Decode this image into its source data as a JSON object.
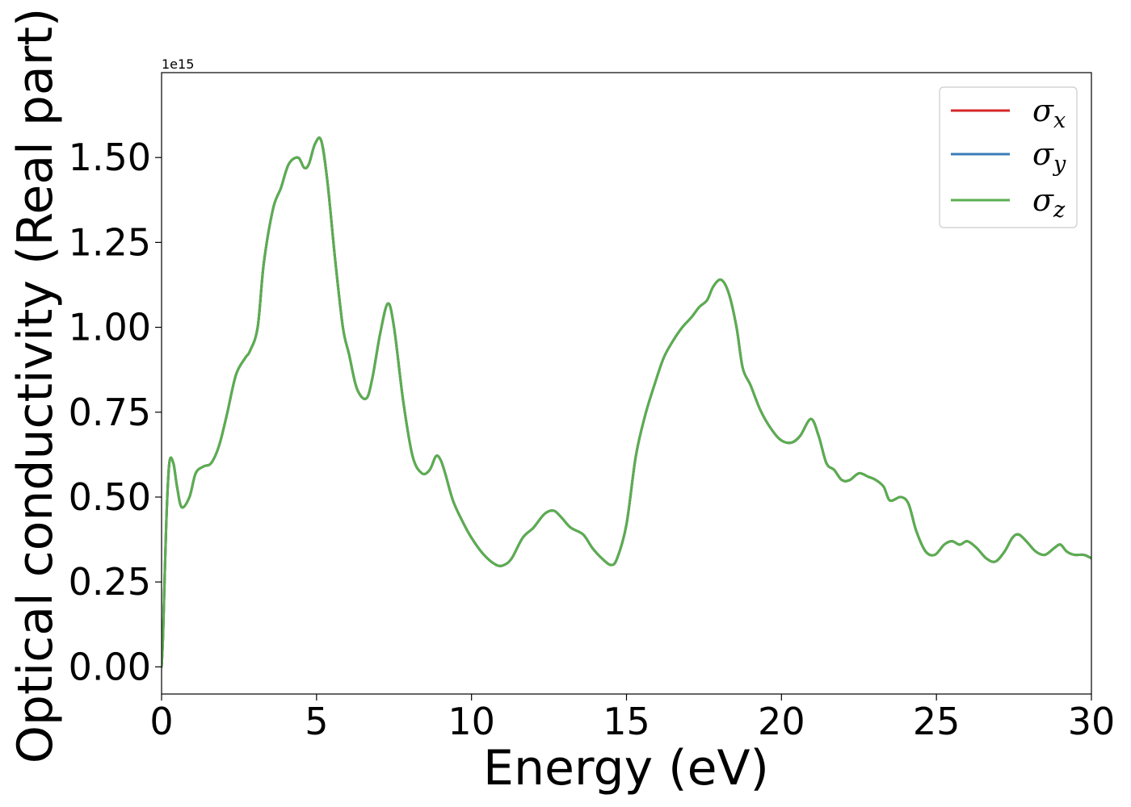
{
  "chart_data": {
    "type": "line",
    "xlabel": "Energy (eV)",
    "ylabel": "Optical conductivity (Real part)",
    "y_offset_label": "1e15",
    "y_scale_factor": 1000000000000000.0,
    "xlim": [
      0,
      30
    ],
    "ylim": [
      -0.08,
      1.75
    ],
    "xticks": [
      0,
      5,
      10,
      15,
      20,
      25,
      30
    ],
    "xtick_labels": [
      "0",
      "5",
      "10",
      "15",
      "20",
      "25",
      "30"
    ],
    "yticks": [
      0.0,
      0.25,
      0.5,
      0.75,
      1.0,
      1.25,
      1.5
    ],
    "ytick_labels": [
      "0.00",
      "0.25",
      "0.50",
      "0.75",
      "1.00",
      "1.25",
      "1.50"
    ],
    "grid": false,
    "legend_position": "top-right",
    "x": [
      0,
      0.05,
      0.15,
      0.25,
      0.38,
      0.5,
      0.65,
      0.9,
      1.1,
      1.35,
      1.6,
      1.85,
      2.1,
      2.4,
      2.7,
      2.85,
      3.1,
      3.3,
      3.6,
      3.85,
      4.1,
      4.4,
      4.6,
      4.75,
      4.95,
      5.15,
      5.35,
      5.6,
      5.85,
      6.05,
      6.3,
      6.6,
      6.8,
      7.05,
      7.3,
      7.5,
      7.8,
      8.1,
      8.4,
      8.65,
      8.85,
      9.0,
      9.15,
      9.4,
      9.7,
      10.0,
      10.4,
      10.8,
      11.05,
      11.3,
      11.65,
      12.0,
      12.35,
      12.65,
      12.9,
      13.2,
      13.6,
      13.9,
      14.2,
      14.5,
      14.7,
      15.0,
      15.3,
      15.6,
      15.9,
      16.2,
      16.5,
      16.8,
      17.1,
      17.35,
      17.6,
      17.8,
      18.05,
      18.3,
      18.55,
      18.75,
      19.0,
      19.3,
      19.6,
      19.95,
      20.3,
      20.6,
      20.95,
      21.2,
      21.45,
      21.7,
      21.95,
      22.2,
      22.5,
      22.8,
      23.05,
      23.3,
      23.5,
      23.85,
      24.1,
      24.35,
      24.65,
      24.95,
      25.25,
      25.5,
      25.75,
      26.0,
      26.3,
      26.6,
      26.9,
      27.2,
      27.45,
      27.65,
      27.9,
      28.2,
      28.5,
      28.8,
      29.0,
      29.2,
      29.45,
      29.75,
      30.0
    ],
    "series": [
      {
        "name": "σx",
        "color": "#d62728",
        "values": [
          0.0,
          0.1,
          0.42,
          0.6,
          0.6,
          0.53,
          0.47,
          0.5,
          0.57,
          0.59,
          0.6,
          0.65,
          0.74,
          0.86,
          0.91,
          0.93,
          1.0,
          1.19,
          1.35,
          1.41,
          1.48,
          1.5,
          1.47,
          1.48,
          1.54,
          1.55,
          1.43,
          1.2,
          1.0,
          0.92,
          0.82,
          0.79,
          0.85,
          0.98,
          1.07,
          1.0,
          0.78,
          0.62,
          0.57,
          0.58,
          0.62,
          0.61,
          0.57,
          0.49,
          0.43,
          0.38,
          0.33,
          0.3,
          0.3,
          0.32,
          0.38,
          0.41,
          0.45,
          0.46,
          0.44,
          0.41,
          0.39,
          0.35,
          0.32,
          0.3,
          0.32,
          0.42,
          0.62,
          0.74,
          0.83,
          0.91,
          0.96,
          1.0,
          1.03,
          1.06,
          1.08,
          1.12,
          1.14,
          1.1,
          1.0,
          0.88,
          0.83,
          0.76,
          0.71,
          0.67,
          0.66,
          0.68,
          0.73,
          0.68,
          0.6,
          0.58,
          0.55,
          0.55,
          0.57,
          0.56,
          0.55,
          0.53,
          0.49,
          0.5,
          0.48,
          0.4,
          0.34,
          0.33,
          0.36,
          0.37,
          0.36,
          0.37,
          0.35,
          0.32,
          0.31,
          0.34,
          0.38,
          0.39,
          0.37,
          0.34,
          0.33,
          0.35,
          0.36,
          0.34,
          0.33,
          0.33,
          0.32
        ]
      },
      {
        "name": "σy",
        "color": "#3a7db8",
        "values": [
          0.0,
          0.1,
          0.42,
          0.6,
          0.6,
          0.53,
          0.47,
          0.5,
          0.57,
          0.59,
          0.6,
          0.65,
          0.74,
          0.86,
          0.91,
          0.93,
          1.0,
          1.19,
          1.35,
          1.41,
          1.48,
          1.5,
          1.47,
          1.48,
          1.54,
          1.55,
          1.43,
          1.2,
          1.0,
          0.92,
          0.82,
          0.79,
          0.85,
          0.98,
          1.07,
          1.0,
          0.78,
          0.62,
          0.57,
          0.58,
          0.62,
          0.61,
          0.57,
          0.49,
          0.43,
          0.38,
          0.33,
          0.3,
          0.3,
          0.32,
          0.38,
          0.41,
          0.45,
          0.46,
          0.44,
          0.41,
          0.39,
          0.35,
          0.32,
          0.3,
          0.32,
          0.42,
          0.62,
          0.74,
          0.83,
          0.91,
          0.96,
          1.0,
          1.03,
          1.06,
          1.08,
          1.12,
          1.14,
          1.1,
          1.0,
          0.88,
          0.83,
          0.76,
          0.71,
          0.67,
          0.66,
          0.68,
          0.73,
          0.68,
          0.6,
          0.58,
          0.55,
          0.55,
          0.57,
          0.56,
          0.55,
          0.53,
          0.49,
          0.5,
          0.48,
          0.4,
          0.34,
          0.33,
          0.36,
          0.37,
          0.36,
          0.37,
          0.35,
          0.32,
          0.31,
          0.34,
          0.38,
          0.39,
          0.37,
          0.34,
          0.33,
          0.35,
          0.36,
          0.34,
          0.33,
          0.33,
          0.32
        ]
      },
      {
        "name": "σz",
        "color": "#5aae4e",
        "values": [
          0.0,
          0.1,
          0.42,
          0.6,
          0.6,
          0.53,
          0.47,
          0.5,
          0.57,
          0.59,
          0.6,
          0.65,
          0.74,
          0.86,
          0.91,
          0.93,
          1.0,
          1.19,
          1.35,
          1.41,
          1.48,
          1.5,
          1.47,
          1.48,
          1.54,
          1.55,
          1.43,
          1.2,
          1.0,
          0.92,
          0.82,
          0.79,
          0.85,
          0.98,
          1.07,
          1.0,
          0.78,
          0.62,
          0.57,
          0.58,
          0.62,
          0.61,
          0.57,
          0.49,
          0.43,
          0.38,
          0.33,
          0.3,
          0.3,
          0.32,
          0.38,
          0.41,
          0.45,
          0.46,
          0.44,
          0.41,
          0.39,
          0.35,
          0.32,
          0.3,
          0.32,
          0.42,
          0.62,
          0.74,
          0.83,
          0.91,
          0.96,
          1.0,
          1.03,
          1.06,
          1.08,
          1.12,
          1.14,
          1.1,
          1.0,
          0.88,
          0.83,
          0.76,
          0.71,
          0.67,
          0.66,
          0.68,
          0.73,
          0.68,
          0.6,
          0.58,
          0.55,
          0.55,
          0.57,
          0.56,
          0.55,
          0.53,
          0.49,
          0.5,
          0.48,
          0.4,
          0.34,
          0.33,
          0.36,
          0.37,
          0.36,
          0.37,
          0.35,
          0.32,
          0.31,
          0.34,
          0.38,
          0.39,
          0.37,
          0.34,
          0.33,
          0.35,
          0.36,
          0.34,
          0.33,
          0.33,
          0.32
        ]
      }
    ],
    "legend": [
      {
        "symbol": "σ",
        "subscript": "x",
        "color": "#d62728"
      },
      {
        "symbol": "σ",
        "subscript": "y",
        "color": "#3a7db8"
      },
      {
        "symbol": "σ",
        "subscript": "z",
        "color": "#5aae4e"
      }
    ]
  }
}
